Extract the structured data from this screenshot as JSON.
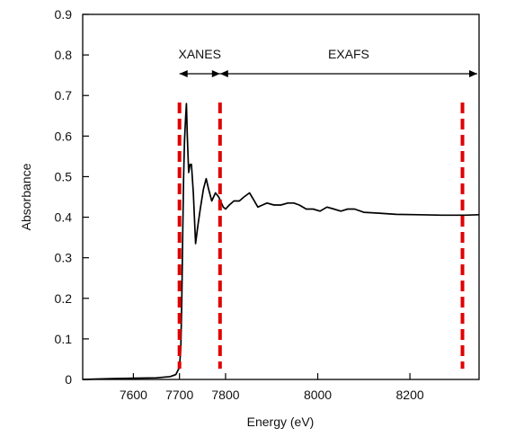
{
  "chart_data": {
    "type": "line",
    "xlabel": "Energy (eV)",
    "ylabel": "Absorbance",
    "xlim": [
      7490,
      8350
    ],
    "ylim": [
      0,
      0.9
    ],
    "xticks": [
      7600,
      7700,
      7800,
      8000,
      8200
    ],
    "xtick_labels": [
      "7600",
      "7700",
      "7800",
      "8000",
      "8200"
    ],
    "yticks": [
      0,
      0.1,
      0.2,
      0.3,
      0.4,
      0.5,
      0.6,
      0.7,
      0.8,
      0.9
    ],
    "ytick_labels": [
      "0",
      "0.1",
      "0.2",
      "0.3",
      "0.4",
      "0.5",
      "0.6",
      "0.7",
      "0.8",
      "0.9"
    ],
    "grid": false,
    "series": [
      {
        "color": "#000000",
        "x": [
          7490,
          7550,
          7600,
          7650,
          7680,
          7692,
          7700,
          7703,
          7705,
          7707,
          7709,
          7711,
          7713,
          7715,
          7717,
          7720,
          7723,
          7726,
          7730,
          7735,
          7740,
          7745,
          7752,
          7758,
          7763,
          7770,
          7778,
          7785,
          7795,
          7800,
          7808,
          7818,
          7830,
          7840,
          7852,
          7860,
          7870,
          7880,
          7890,
          7905,
          7920,
          7935,
          7948,
          7960,
          7975,
          7990,
          8005,
          8020,
          8035,
          8050,
          8065,
          8080,
          8100,
          8130,
          8170,
          8220,
          8270,
          8320,
          8350
        ],
        "y": [
          0.0,
          0.002,
          0.003,
          0.004,
          0.007,
          0.012,
          0.03,
          0.08,
          0.2,
          0.36,
          0.5,
          0.59,
          0.64,
          0.68,
          0.6,
          0.51,
          0.53,
          0.53,
          0.46,
          0.335,
          0.38,
          0.42,
          0.47,
          0.495,
          0.47,
          0.44,
          0.46,
          0.45,
          0.425,
          0.42,
          0.43,
          0.44,
          0.44,
          0.45,
          0.46,
          0.445,
          0.425,
          0.43,
          0.435,
          0.43,
          0.43,
          0.435,
          0.435,
          0.43,
          0.42,
          0.42,
          0.415,
          0.425,
          0.42,
          0.415,
          0.42,
          0.42,
          0.412,
          0.41,
          0.407,
          0.406,
          0.405,
          0.405,
          0.406
        ]
      }
    ],
    "reference_lines": {
      "color": "#e00000",
      "x": [
        7700,
        7788,
        8314
      ]
    },
    "annotations": [
      {
        "label": "XANES",
        "from": 7700,
        "to": 7788
      },
      {
        "label": "EXAFS",
        "from": 7788,
        "to": 8350
      }
    ]
  }
}
